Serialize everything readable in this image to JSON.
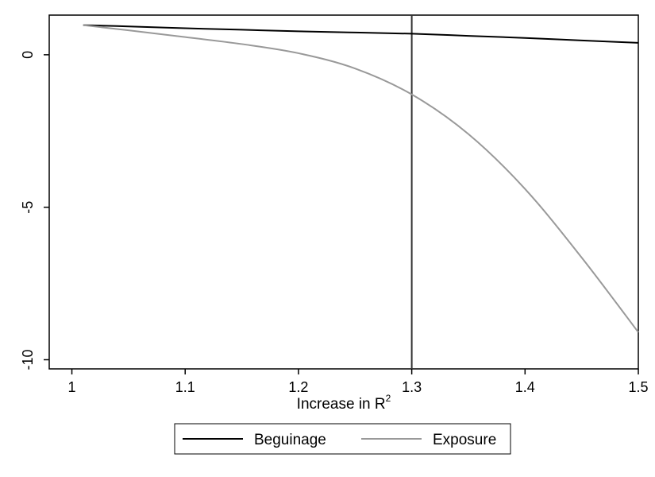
{
  "chart_data": {
    "type": "line",
    "title": "",
    "xlabel": "Increase in R",
    "xlabel_superscript": "2",
    "ylabel": "",
    "xlim": [
      0.98,
      1.5
    ],
    "ylim": [
      -10.3,
      1.3
    ],
    "x_ticks": [
      1,
      1.1,
      1.2,
      1.3,
      1.4,
      1.5
    ],
    "x_tick_labels": [
      "1",
      "1.1",
      "1.2",
      "1.3",
      "1.4",
      "1.5"
    ],
    "y_ticks": [
      0,
      -5,
      -10
    ],
    "y_tick_labels": [
      "0",
      "-5",
      "-10"
    ],
    "grid": false,
    "legend_position": "bottom",
    "reference_line_x": 1.3,
    "x": [
      1.01,
      1.05,
      1.1,
      1.15,
      1.2,
      1.25,
      1.3,
      1.35,
      1.4,
      1.45,
      1.5
    ],
    "series": [
      {
        "name": "Beguinage",
        "color": "#000000",
        "values": [
          0.97,
          0.93,
          0.87,
          0.82,
          0.77,
          0.73,
          0.69,
          0.62,
          0.55,
          0.47,
          0.39
        ]
      },
      {
        "name": "Exposure",
        "color": "#999999",
        "values": [
          0.97,
          0.8,
          0.58,
          0.35,
          0.05,
          -0.45,
          -1.3,
          -2.6,
          -4.4,
          -6.65,
          -9.1
        ]
      }
    ]
  }
}
